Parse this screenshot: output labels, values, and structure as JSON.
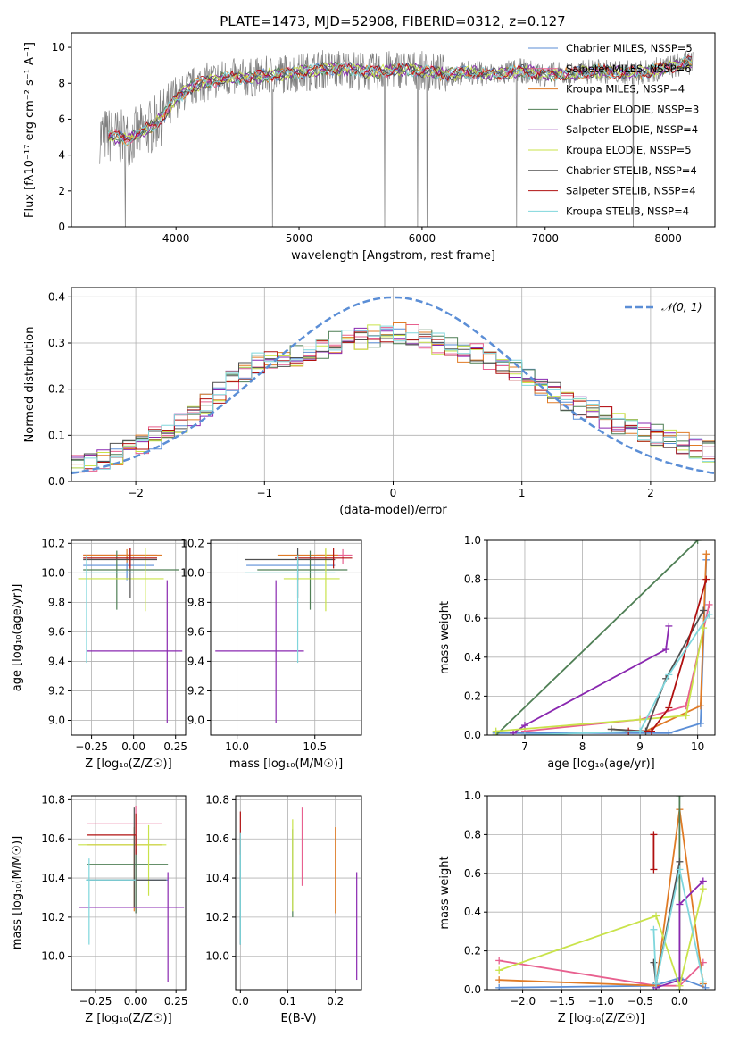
{
  "figure": {
    "title": "PLATE=1473, MJD=52908, FIBERID=0312, z=0.127"
  },
  "palette": {
    "Chabrier MILES": "#5b8ed6",
    "Salpeter MILES": "#e8608f",
    "Kroupa MILES": "#e07b26",
    "Chabrier ELODIE": "#4f7f55",
    "Salpeter ELODIE": "#8a28b0",
    "Kroupa ELODIE": "#c9e34a",
    "Chabrier STELIB": "#505050",
    "Salpeter STELIB": "#b01010",
    "Kroupa STELIB": "#7fd6dc",
    "data": "#808080"
  },
  "chart_data": [
    {
      "id": "spectrum",
      "type": "line",
      "xlabel": "wavelength [Angstrom, rest frame]",
      "ylabel": "Flux [fλ10⁻¹⁷ erg cm⁻² s⁻¹ A⁻¹]",
      "xlim": [
        3150,
        8380
      ],
      "ylim": [
        0,
        10.8
      ],
      "xticks": [
        4000,
        5000,
        6000,
        7000,
        8000
      ],
      "yticks": [
        0,
        2,
        4,
        6,
        8,
        10
      ],
      "legend_position": "right",
      "legend": [
        "Chabrier MILES, NSSP=5",
        "Salpeter MILES, NSSP=6",
        "Kroupa MILES, NSSP=4",
        "Chabrier ELODIE, NSSP=3",
        "Salpeter ELODIE, NSSP=4",
        "Kroupa ELODIE, NSSP=5",
        "Chabrier STELIB, NSSP=4",
        "Salpeter STELIB, NSSP=4",
        "Kroupa STELIB, NSSP=4"
      ],
      "continuum": {
        "x": [
          3450,
          3600,
          3700,
          3800,
          3900,
          4000,
          4100,
          4200,
          4400,
          4600,
          4800,
          5000,
          5200,
          5400,
          5600,
          5800,
          6000,
          6200,
          6400,
          6600,
          6800,
          7000,
          7200,
          7400,
          7600,
          7800,
          8000,
          8200
        ],
        "y": [
          5.1,
          4.9,
          5.2,
          5.6,
          6.2,
          7.1,
          7.7,
          8.0,
          8.3,
          8.3,
          8.5,
          8.6,
          8.8,
          8.8,
          8.6,
          8.8,
          8.7,
          8.5,
          8.6,
          8.5,
          8.7,
          8.5,
          8.5,
          8.7,
          8.6,
          8.6,
          8.9,
          9.2
        ]
      },
      "data_range": [
        3380,
        8200
      ]
    },
    {
      "id": "residuals",
      "type": "histogram",
      "xlabel": "(data-model)/error",
      "ylabel": "Normed distribution",
      "xlim": [
        -2.5,
        2.5
      ],
      "ylim": [
        0,
        0.42
      ],
      "xticks": [
        -2,
        -1,
        0,
        1,
        2
      ],
      "yticks": [
        0.0,
        0.1,
        0.2,
        0.3,
        0.4
      ],
      "reference_curve": "𝒩(0, 1)",
      "legend_position": "top-right",
      "bins": [
        -2.5,
        -2.4,
        -2.3,
        -2.2,
        -2.1,
        -2.0,
        -1.9,
        -1.8,
        -1.7,
        -1.6,
        -1.5,
        -1.4,
        -1.3,
        -1.2,
        -1.1,
        -1.0,
        -0.9,
        -0.8,
        -0.7,
        -0.6,
        -0.5,
        -0.4,
        -0.3,
        -0.2,
        -0.1,
        0.0,
        0.1,
        0.2,
        0.3,
        0.4,
        0.5,
        0.6,
        0.7,
        0.8,
        0.9,
        1.0,
        1.1,
        1.2,
        1.3,
        1.4,
        1.5,
        1.6,
        1.7,
        1.8,
        1.9,
        2.0,
        2.1,
        2.2,
        2.3,
        2.4,
        2.5
      ],
      "envelope": [
        0.04,
        0.042,
        0.05,
        0.06,
        0.075,
        0.085,
        0.095,
        0.11,
        0.13,
        0.145,
        0.165,
        0.19,
        0.215,
        0.24,
        0.255,
        0.27,
        0.265,
        0.27,
        0.28,
        0.29,
        0.3,
        0.305,
        0.31,
        0.315,
        0.32,
        0.32,
        0.315,
        0.31,
        0.3,
        0.29,
        0.28,
        0.275,
        0.265,
        0.255,
        0.24,
        0.22,
        0.205,
        0.19,
        0.175,
        0.16,
        0.15,
        0.14,
        0.125,
        0.115,
        0.11,
        0.1,
        0.095,
        0.085,
        0.075,
        0.065
      ],
      "series": [
        "Chabrier MILES",
        "Salpeter MILES",
        "Kroupa MILES",
        "Chabrier ELODIE",
        "Salpeter ELODIE",
        "Kroupa ELODIE",
        "Chabrier STELIB",
        "Salpeter STELIB",
        "Kroupa STELIB"
      ]
    },
    {
      "id": "age-vs-Z",
      "type": "errorbar",
      "xlabel": "Z [log₁₀(Z/Z☉)]",
      "ylabel": "age  [log₁₀(age/yr)]",
      "xlim": [
        -0.37,
        0.31
      ],
      "ylim": [
        8.9,
        10.22
      ],
      "xticks": [
        -0.25,
        0.0,
        0.25
      ],
      "xticklabels": [
        "−0.25",
        "0.00",
        "0.25"
      ],
      "yticks": [
        9.0,
        9.2,
        9.4,
        9.6,
        9.8,
        10.0,
        10.2
      ],
      "points": [
        {
          "series": "Chabrier MILES",
          "x": -0.04,
          "xerr": [
            0.26,
            0.16
          ],
          "y": 10.05,
          "yerr": [
            0.1,
            0.08
          ]
        },
        {
          "series": "Salpeter MILES",
          "x": -0.02,
          "xerr": [
            0.28,
            0.16
          ],
          "y": 10.12,
          "yerr": [
            0.06,
            0.04
          ]
        },
        {
          "series": "Kroupa MILES",
          "x": -0.04,
          "xerr": [
            0.26,
            0.21
          ],
          "y": 10.12,
          "yerr": [
            0.05,
            0.04
          ]
        },
        {
          "series": "Chabrier ELODIE",
          "x": -0.1,
          "xerr": [
            0.2,
            0.37
          ],
          "y": 10.02,
          "yerr": [
            0.27,
            0.13
          ]
        },
        {
          "series": "Salpeter ELODIE",
          "x": 0.2,
          "xerr": [
            0.48,
            0.09
          ],
          "y": 9.47,
          "yerr": [
            0.49,
            0.48
          ]
        },
        {
          "series": "Kroupa ELODIE",
          "x": 0.07,
          "xerr": [
            0.4,
            0.11
          ],
          "y": 9.96,
          "yerr": [
            0.22,
            0.21
          ]
        },
        {
          "series": "Chabrier STELIB",
          "x": -0.02,
          "xerr": [
            0.28,
            0.16
          ],
          "y": 10.09,
          "yerr": [
            0.26,
            0.08
          ]
        },
        {
          "series": "Salpeter STELIB",
          "x": -0.02,
          "xerr": [
            0.28,
            0.16
          ],
          "y": 10.1,
          "yerr": [
            0.07,
            0.07
          ]
        },
        {
          "series": "Kroupa STELIB",
          "x": -0.28,
          "xerr": [
            0.02,
            0.28
          ],
          "y": 10.0,
          "yerr": [
            0.61,
            0.12
          ]
        }
      ]
    },
    {
      "id": "age-vs-mass",
      "type": "errorbar",
      "xlabel": "mass [log₁₀(M/M☉)]",
      "ylabel": "",
      "xlim": [
        9.83,
        10.8
      ],
      "ylim": [
        8.9,
        10.22
      ],
      "xticks": [
        10.0,
        10.5
      ],
      "xticklabels": [
        "10.0",
        "10.5"
      ],
      "yticks": [
        9.0,
        9.2,
        9.4,
        9.6,
        9.8,
        10.0,
        10.2
      ],
      "points": [
        {
          "series": "Chabrier MILES",
          "x": 10.39,
          "xerr": [
            0.33,
            0.24
          ],
          "y": 10.05,
          "yerr": [
            0.1,
            0.08
          ]
        },
        {
          "series": "Salpeter MILES",
          "x": 10.68,
          "xerr": [
            0.17,
            0.06
          ],
          "y": 10.12,
          "yerr": [
            0.06,
            0.04
          ]
        },
        {
          "series": "Kroupa MILES",
          "x": 10.57,
          "xerr": [
            0.31,
            0.08
          ],
          "y": 10.12,
          "yerr": [
            0.05,
            0.04
          ]
        },
        {
          "series": "Chabrier ELODIE",
          "x": 10.47,
          "xerr": [
            0.34,
            0.24
          ],
          "y": 10.02,
          "yerr": [
            0.27,
            0.13
          ]
        },
        {
          "series": "Salpeter ELODIE",
          "x": 10.25,
          "xerr": [
            0.39,
            0.18
          ],
          "y": 9.47,
          "yerr": [
            0.49,
            0.48
          ]
        },
        {
          "series": "Kroupa ELODIE",
          "x": 10.57,
          "xerr": [
            0.27,
            0.09
          ],
          "y": 9.96,
          "yerr": [
            0.22,
            0.21
          ]
        },
        {
          "series": "Chabrier STELIB",
          "x": 10.39,
          "xerr": [
            0.34,
            0.24
          ],
          "y": 10.09,
          "yerr": [
            0.26,
            0.08
          ]
        },
        {
          "series": "Salpeter STELIB",
          "x": 10.62,
          "xerr": [
            0.25,
            0.12
          ],
          "y": 10.1,
          "yerr": [
            0.07,
            0.07
          ]
        },
        {
          "series": "Kroupa STELIB",
          "x": 10.39,
          "xerr": [
            0.34,
            0.24
          ],
          "y": 10.0,
          "yerr": [
            0.61,
            0.12
          ]
        }
      ]
    },
    {
      "id": "weight-vs-age",
      "type": "line",
      "xlabel": "age  [log₁₀(age/yr)]",
      "ylabel": "mass weight",
      "xlim": [
        6.35,
        10.3
      ],
      "ylim": [
        0,
        1
      ],
      "xticks": [
        7,
        8,
        9,
        10
      ],
      "yticks": [
        0.0,
        0.2,
        0.4,
        0.6,
        0.8,
        1.0
      ],
      "series": [
        {
          "name": "Chabrier MILES",
          "x": [
            6.5,
            9.5,
            10.05,
            10.15
          ],
          "y": [
            0.01,
            0.01,
            0.06,
            0.9
          ]
        },
        {
          "name": "Salpeter MILES",
          "x": [
            7.0,
            9.0,
            9.8,
            10.2
          ],
          "y": [
            0.02,
            0.08,
            0.15,
            0.67
          ]
        },
        {
          "name": "Kroupa MILES",
          "x": [
            8.5,
            9.1,
            10.05,
            10.15
          ],
          "y": [
            0.03,
            0.02,
            0.15,
            0.93
          ]
        },
        {
          "name": "Chabrier ELODIE",
          "x": [
            6.5,
            10.0
          ],
          "y": [
            0.0,
            1.0
          ]
        },
        {
          "name": "Salpeter ELODIE",
          "x": [
            6.8,
            7.0,
            9.45,
            9.5
          ],
          "y": [
            0.01,
            0.05,
            0.44,
            0.56
          ]
        },
        {
          "name": "Kroupa ELODIE",
          "x": [
            6.5,
            9.0,
            9.8,
            10.1
          ],
          "y": [
            0.02,
            0.08,
            0.1,
            0.55
          ]
        },
        {
          "name": "Chabrier STELIB",
          "x": [
            8.5,
            9.1,
            9.45,
            10.1
          ],
          "y": [
            0.03,
            0.02,
            0.29,
            0.64
          ]
        },
        {
          "name": "Salpeter STELIB",
          "x": [
            8.8,
            9.2,
            9.5,
            10.15
          ],
          "y": [
            0.02,
            0.02,
            0.14,
            0.8
          ]
        },
        {
          "name": "Kroupa STELIB",
          "x": [
            7.0,
            9.0,
            9.5,
            10.2
          ],
          "y": [
            0.0,
            0.02,
            0.31,
            0.62
          ]
        }
      ]
    },
    {
      "id": "mass-vs-Z",
      "type": "errorbar",
      "xlabel": "Z [log₁₀(Z/Z☉)]",
      "ylabel": "mass [log₁₀(M/M☉)]",
      "xlim": [
        -0.4,
        0.31
      ],
      "ylim": [
        9.83,
        10.82
      ],
      "xticks": [
        -0.25,
        0.0,
        0.25
      ],
      "xticklabels": [
        "−0.25",
        "0.00",
        "0.25"
      ],
      "yticks": [
        10.0,
        10.2,
        10.4,
        10.6,
        10.8
      ],
      "points": [
        {
          "series": "Chabrier MILES",
          "x": 0.0,
          "xerr": [
            0.3,
            0.2
          ],
          "y": 10.39,
          "yerr": [
            0.17,
            0.16
          ]
        },
        {
          "series": "Salpeter MILES",
          "x": 0.0,
          "xerr": [
            0.3,
            0.16
          ],
          "y": 10.68,
          "yerr": [
            0.46,
            0.09
          ]
        },
        {
          "series": "Kroupa MILES",
          "x": -0.01,
          "xerr": [
            0.29,
            0.17
          ],
          "y": 10.57,
          "yerr": [
            0.34,
            0.09
          ]
        },
        {
          "series": "Chabrier ELODIE",
          "x": 0.0,
          "xerr": [
            0.3,
            0.2
          ],
          "y": 10.47,
          "yerr": [
            0.25,
            0.15
          ]
        },
        {
          "series": "Salpeter ELODIE",
          "x": 0.2,
          "xerr": [
            0.55,
            0.1
          ],
          "y": 10.25,
          "yerr": [
            0.38,
            0.18
          ]
        },
        {
          "series": "Kroupa ELODIE",
          "x": 0.08,
          "xerr": [
            0.44,
            0.11
          ],
          "y": 10.57,
          "yerr": [
            0.26,
            0.1
          ]
        },
        {
          "series": "Chabrier STELIB",
          "x": -0.01,
          "xerr": [
            0.29,
            0.2
          ],
          "y": 10.39,
          "yerr": [
            0.14,
            0.37
          ]
        },
        {
          "series": "Salpeter STELIB",
          "x": 0.0,
          "xerr": [
            0.3,
            0.0
          ],
          "y": 10.62,
          "yerr": [
            0.1,
            0.11
          ]
        },
        {
          "series": "Kroupa STELIB",
          "x": -0.29,
          "xerr": [
            0.02,
            0.29
          ],
          "y": 10.39,
          "yerr": [
            0.33,
            0.11
          ]
        }
      ]
    },
    {
      "id": "mass-vs-ebv",
      "type": "errorbar",
      "xlabel": "E(B-V)",
      "ylabel": "",
      "xlim": [
        -0.01,
        0.255
      ],
      "ylim": [
        9.83,
        10.82
      ],
      "xticks": [
        0.0,
        0.1,
        0.2
      ],
      "xticklabels": [
        "0.0",
        "0.1",
        "0.2"
      ],
      "yticks": [
        10.0,
        10.2,
        10.4,
        10.6,
        10.8
      ],
      "points": [
        {
          "series": "Chabrier MILES",
          "x": 0.0,
          "y": 10.39,
          "yerr": [
            0.33,
            0.24
          ]
        },
        {
          "series": "Salpeter MILES",
          "x": 0.13,
          "y": 10.55,
          "yerr": [
            0.19,
            0.21
          ]
        },
        {
          "series": "Kroupa MILES",
          "x": 0.2,
          "y": 10.45,
          "yerr": [
            0.23,
            0.21
          ]
        },
        {
          "series": "Chabrier ELODIE",
          "x": 0.11,
          "y": 10.45,
          "yerr": [
            0.25,
            0.2
          ]
        },
        {
          "series": "Salpeter ELODIE",
          "x": 0.245,
          "y": 10.15,
          "yerr": [
            0.27,
            0.28
          ]
        },
        {
          "series": "Kroupa ELODIE",
          "x": 0.11,
          "y": 10.47,
          "yerr": [
            0.24,
            0.23
          ]
        },
        {
          "series": "Chabrier STELIB",
          "x": 0.0,
          "y": 10.39,
          "yerr": [
            0.33,
            0.24
          ]
        },
        {
          "series": "Salpeter STELIB",
          "x": 0.0,
          "y": 10.62,
          "yerr": [
            0.1,
            0.12
          ]
        },
        {
          "series": "Kroupa STELIB",
          "x": 0.0,
          "y": 10.39,
          "yerr": [
            0.33,
            0.24
          ]
        }
      ]
    },
    {
      "id": "weight-vs-Z",
      "type": "line",
      "xlabel": "Z [log₁₀(Z/Z☉)]",
      "ylabel": "mass weight",
      "xlim": [
        -2.45,
        0.45
      ],
      "ylim": [
        0,
        1
      ],
      "xticks": [
        -2.0,
        -1.5,
        -1.0,
        -0.5,
        0.0
      ],
      "xticklabels": [
        "−2.0",
        "−1.5",
        "−1.0",
        "−0.5",
        "0.0"
      ],
      "yticks": [
        0.0,
        0.2,
        0.4,
        0.6,
        0.8,
        1.0
      ],
      "series": [
        {
          "name": "Chabrier MILES",
          "x": [
            -2.3,
            -0.33,
            0.0,
            0.33
          ],
          "y": [
            0.01,
            0.02,
            0.06,
            0.01
          ]
        },
        {
          "name": "Salpeter MILES",
          "x": [
            -2.3,
            -0.3,
            0.0,
            0.3
          ],
          "y": [
            0.15,
            0.02,
            0.02,
            0.14
          ]
        },
        {
          "name": "Kroupa MILES",
          "x": [
            -2.3,
            -0.3,
            0.0,
            0.3
          ],
          "y": [
            0.05,
            0.02,
            0.93,
            0.03
          ]
        },
        {
          "name": "Chabrier ELODIE",
          "x": [
            0.0,
            0.0
          ],
          "y": [
            0.0,
            1.0
          ]
        },
        {
          "name": "Salpeter ELODIE",
          "x": [
            -0.3,
            0.0,
            0.0,
            0.3
          ],
          "y": [
            0.01,
            0.05,
            0.44,
            0.56
          ]
        },
        {
          "name": "Kroupa ELODIE",
          "x": [
            -2.3,
            -0.3,
            0.0,
            0.3
          ],
          "y": [
            0.1,
            0.38,
            0.02,
            0.52
          ]
        },
        {
          "name": "Chabrier STELIB",
          "x": [
            -0.33,
            -0.3,
            0.0
          ],
          "y": [
            0.14,
            0.03,
            0.66
          ]
        },
        {
          "name": "Salpeter STELIB",
          "x": [
            -0.33,
            -0.33
          ],
          "y": [
            0.62,
            0.8
          ]
        },
        {
          "name": "Kroupa STELIB",
          "x": [
            -0.33,
            -0.3,
            0.0,
            0.3
          ],
          "y": [
            0.31,
            0.03,
            0.62,
            0.04
          ]
        }
      ]
    }
  ]
}
